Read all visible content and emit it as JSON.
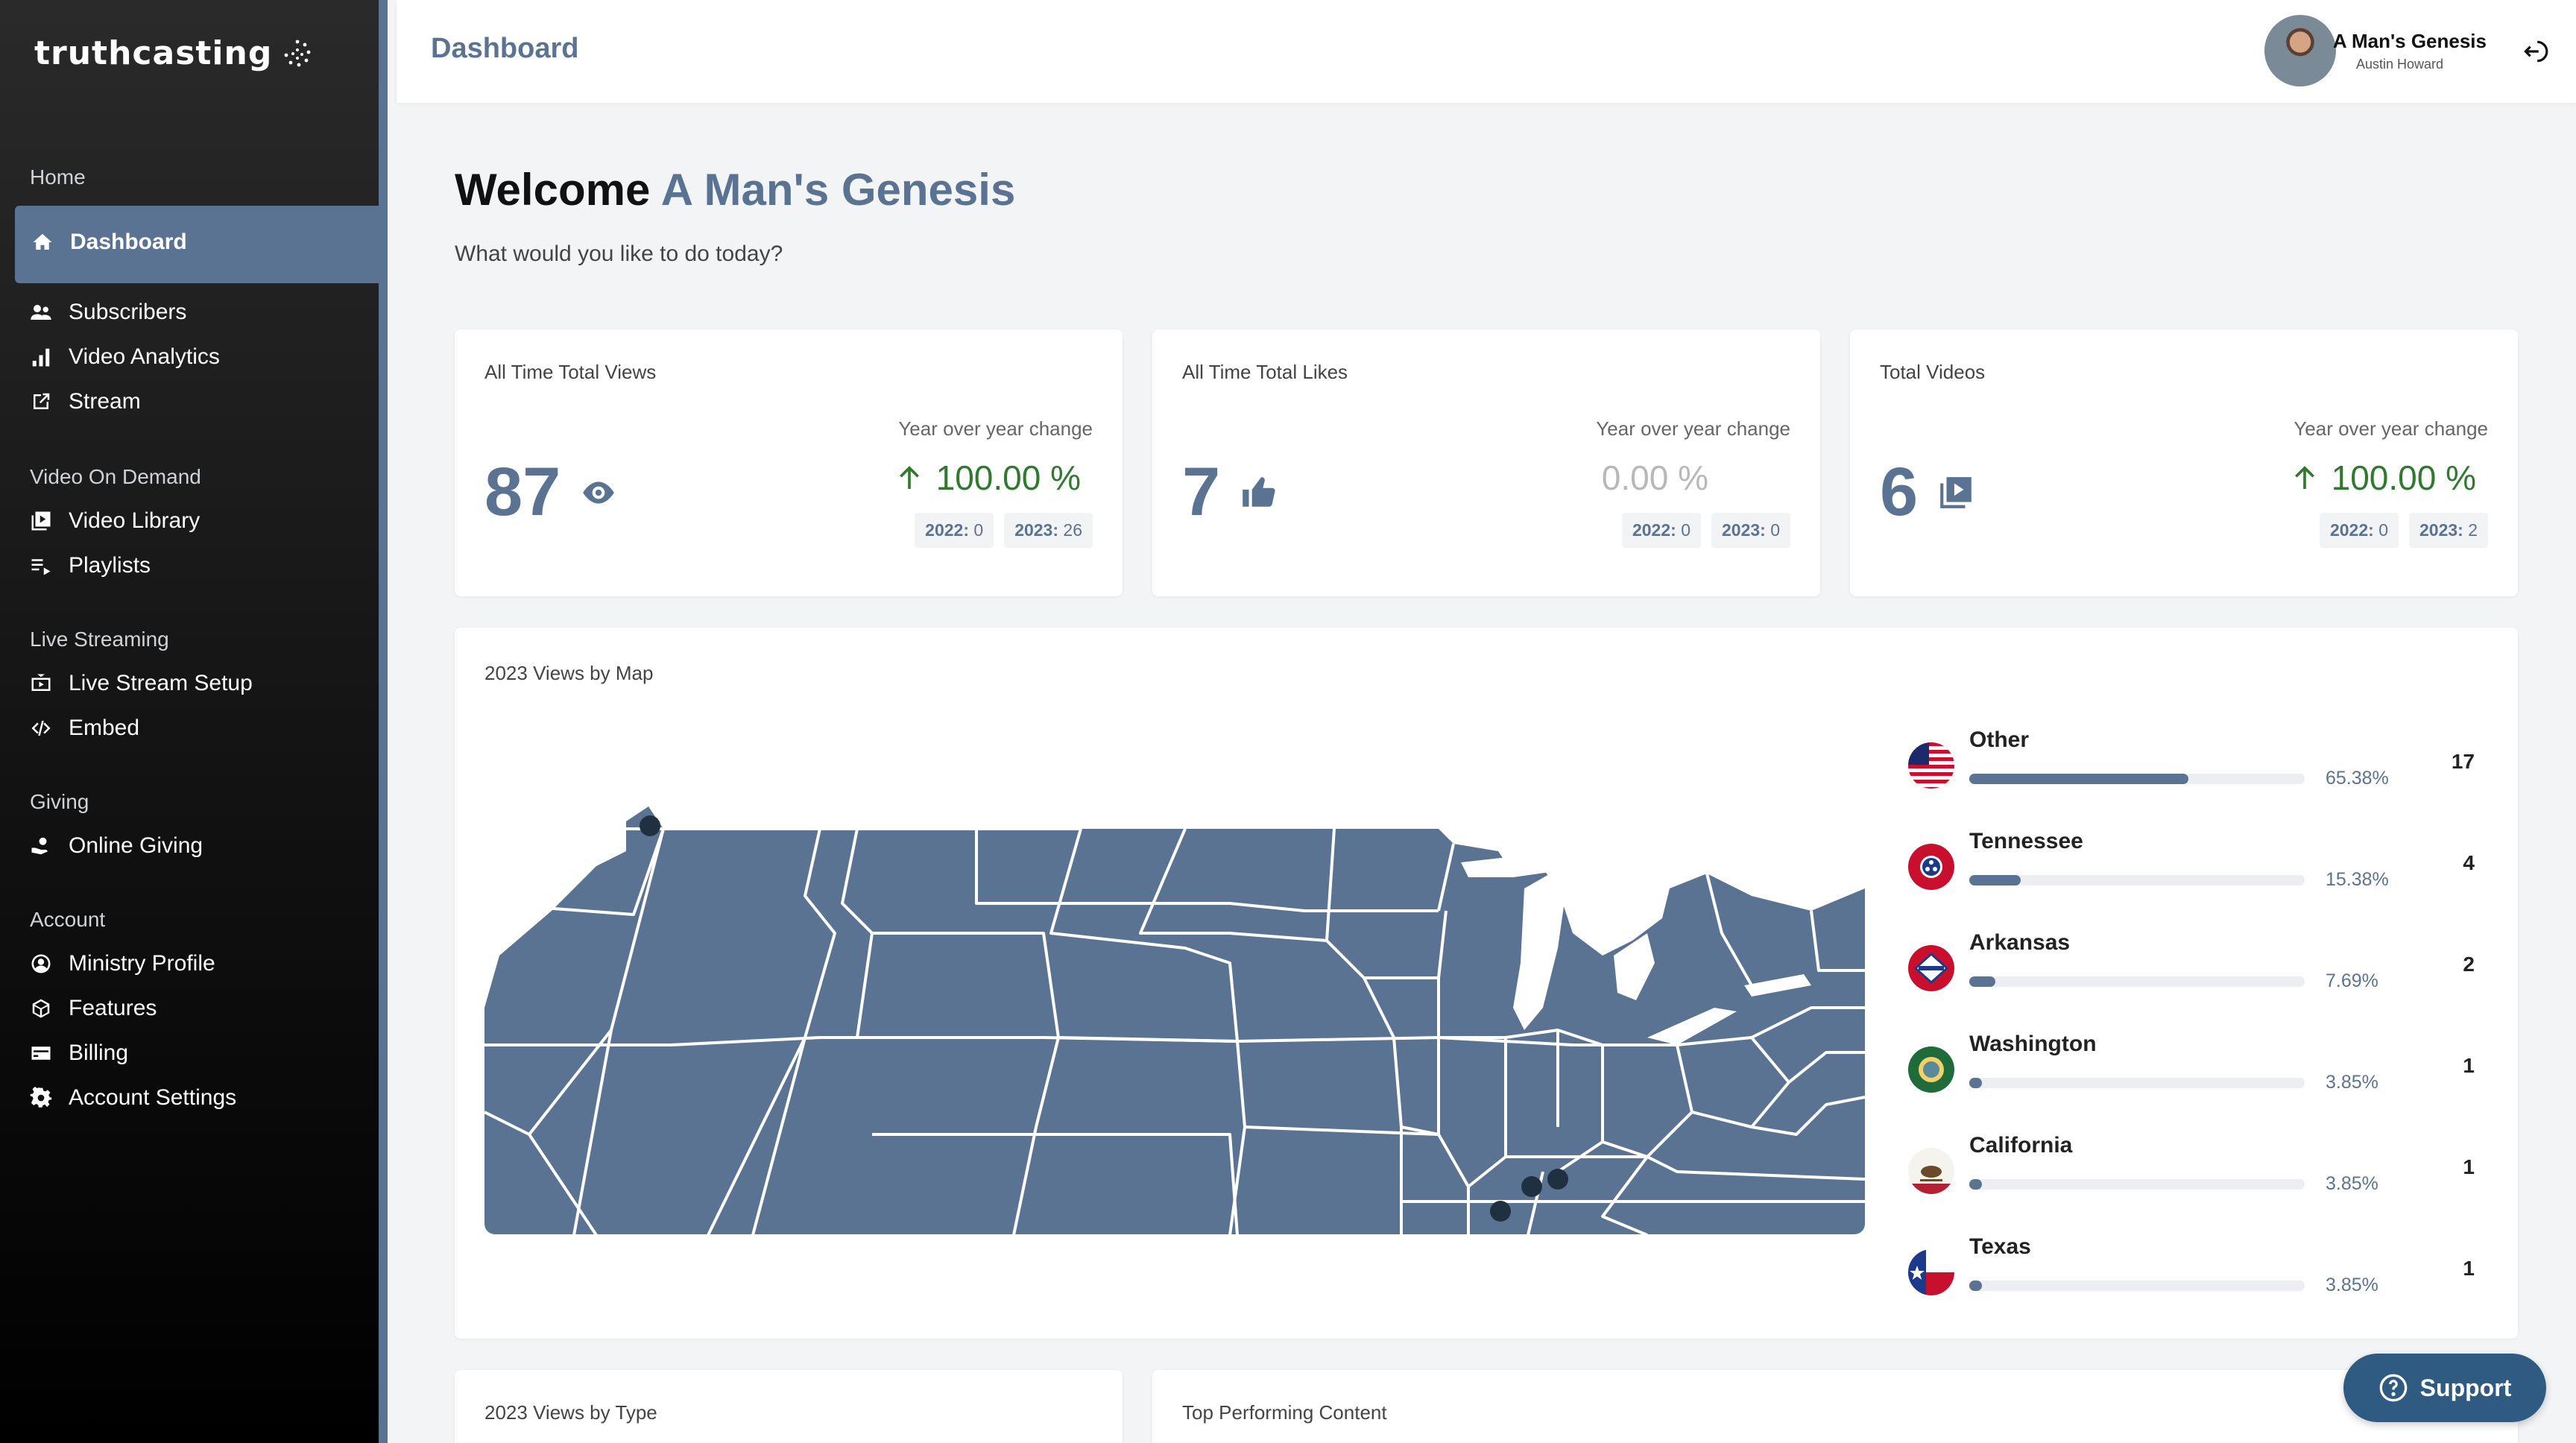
{
  "brand": {
    "name": "truthcasting"
  },
  "sidebar": {
    "sections": {
      "home": "Home",
      "vod": "Video On Demand",
      "live": "Live Streaming",
      "giving": "Giving",
      "account": "Account"
    },
    "items": {
      "dashboard": "Dashboard",
      "subscribers": "Subscribers",
      "video_analytics": "Video Analytics",
      "stream": "Stream",
      "video_library": "Video Library",
      "playlists": "Playlists",
      "live_setup": "Live Stream Setup",
      "embed": "Embed",
      "online_giving": "Online Giving",
      "ministry_profile": "Ministry Profile",
      "features": "Features",
      "billing": "Billing",
      "account_settings": "Account Settings"
    }
  },
  "header": {
    "title": "Dashboard",
    "user_name": "A Man's Genesis",
    "user_sub": "Austin Howard"
  },
  "welcome": {
    "prefix": "Welcome",
    "name": "A Man's Genesis",
    "subtitle": "What would you like to do today?"
  },
  "stats": [
    {
      "title": "All Time Total Views",
      "value": "87",
      "icon": "eye-icon",
      "yoy_label": "Year over year change",
      "change": "100.00 %",
      "y2022": "0",
      "y2023": "26"
    },
    {
      "title": "All Time Total Likes",
      "value": "7",
      "icon": "thumbs-up-icon",
      "yoy_label": "Year over year change",
      "change": "0.00 %",
      "y2022": "0",
      "y2023": "0"
    },
    {
      "title": "Total Videos",
      "value": "6",
      "icon": "video-library-icon",
      "yoy_label": "Year over year change",
      "change": "100.00 %",
      "y2022": "0",
      "y2023": "2"
    }
  ],
  "year_labels": {
    "a": "2022:",
    "b": "2023:"
  },
  "map": {
    "title": "2023 Views by Map",
    "states": [
      {
        "name": "Other",
        "pct": "65.38%",
        "fraction": 0.6538,
        "count": "17",
        "flag": "us-flag"
      },
      {
        "name": "Tennessee",
        "pct": "15.38%",
        "fraction": 0.1538,
        "count": "4",
        "flag": "tennessee-flag"
      },
      {
        "name": "Arkansas",
        "pct": "7.69%",
        "fraction": 0.0769,
        "count": "2",
        "flag": "arkansas-flag"
      },
      {
        "name": "Washington",
        "pct": "3.85%",
        "fraction": 0.0385,
        "count": "1",
        "flag": "washington-flag"
      },
      {
        "name": "California",
        "pct": "3.85%",
        "fraction": 0.0385,
        "count": "1",
        "flag": "california-flag"
      },
      {
        "name": "Texas",
        "pct": "3.85%",
        "fraction": 0.0385,
        "count": "1",
        "flag": "texas-flag"
      }
    ]
  },
  "bottom": {
    "views_by_type": "2023 Views by Type",
    "top_content": "Top Performing Content"
  },
  "support": {
    "label": "Support"
  },
  "colors": {
    "accent": "#5b7393",
    "positive": "#2f7a2f",
    "support": "#2f5b82"
  }
}
